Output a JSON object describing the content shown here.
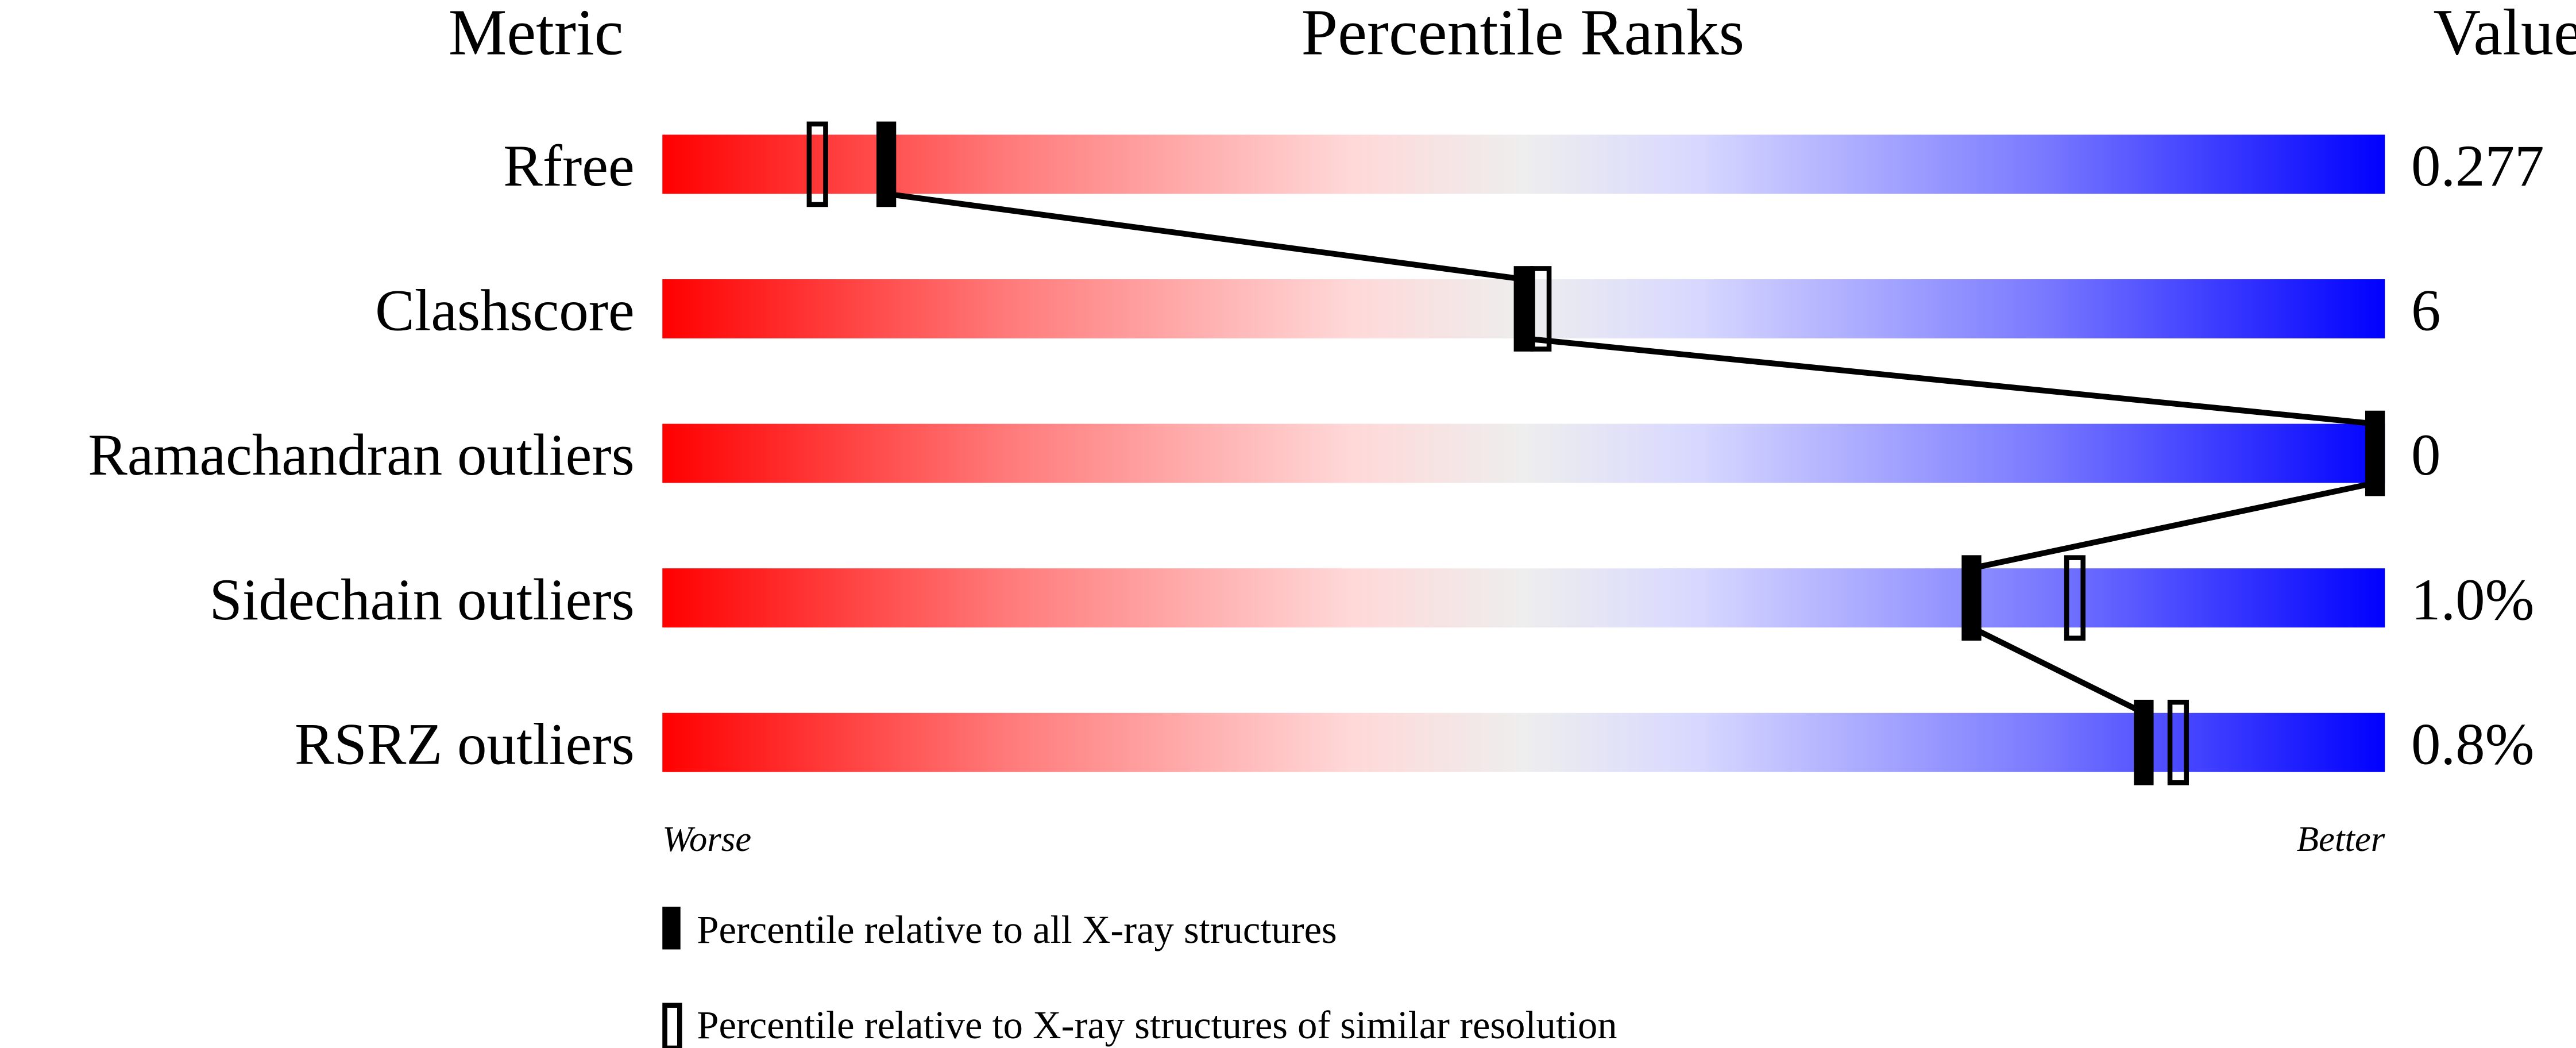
{
  "chart_data": {
    "type": "percentile-slider",
    "headers": {
      "metric": "Metric",
      "ranks": "Percentile Ranks",
      "value": "Value"
    },
    "xlim": [
      0,
      100
    ],
    "colors": {
      "worse": "#ff0000",
      "middle": "#eeeeee",
      "better": "#0000ff",
      "marker": "#000000"
    },
    "rows": [
      {
        "metric": "Rfree",
        "value": "0.277",
        "percentile_all": 13,
        "percentile_similar": 9
      },
      {
        "metric": "Clashscore",
        "value": "6",
        "percentile_all": 50,
        "percentile_similar": 51
      },
      {
        "metric": "Ramachandran outliers",
        "value": "0",
        "percentile_all": 100,
        "percentile_similar": 100
      },
      {
        "metric": "Sidechain outliers",
        "value": "1.0%",
        "percentile_all": 76,
        "percentile_similar": 82
      },
      {
        "metric": "RSRZ outliers",
        "value": "0.8%",
        "percentile_all": 86,
        "percentile_similar": 88
      }
    ],
    "axis_labels": {
      "left": "Worse",
      "right": "Better"
    },
    "legend": {
      "all": "Percentile relative to all X-ray structures",
      "similar": "Percentile relative to X-ray structures of similar resolution"
    }
  }
}
